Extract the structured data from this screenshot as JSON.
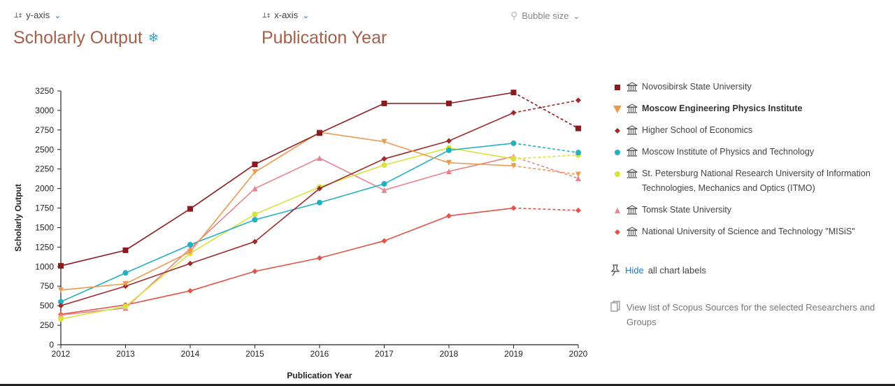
{
  "controls": {
    "y_axis_label": "y-axis",
    "x_axis_label": "x-axis",
    "bubble_label": "Bubble size",
    "y_metric": "Scholarly Output",
    "x_metric": "Publication Year"
  },
  "chart_data": {
    "type": "line",
    "xlabel": "Publication Year",
    "ylabel": "Scholarly Output",
    "x": [
      2012,
      2013,
      2014,
      2015,
      2016,
      2017,
      2018,
      2019,
      2020
    ],
    "ylim": [
      0,
      3250
    ],
    "yticks": [
      0,
      250,
      500,
      750,
      1000,
      1250,
      1500,
      1750,
      2000,
      2250,
      2500,
      2750,
      3000,
      3250
    ],
    "legend_position": "right",
    "grid": false,
    "dashed_last_segment": true,
    "series": [
      {
        "name": "Novosibirsk State University",
        "color": "#8b1a1f",
        "marker": "square",
        "values": [
          1010,
          1210,
          1740,
          2310,
          2710,
          3090,
          3090,
          3230,
          2770
        ]
      },
      {
        "name": "Moscow Engineering Physics Institute",
        "color": "#eb9a4e",
        "marker": "triangle-down",
        "values": [
          700,
          780,
          1190,
          2210,
          2720,
          2600,
          2330,
          2290,
          2180
        ]
      },
      {
        "name": "Higher School of Economics",
        "color": "#9e2a2b",
        "marker": "diamond",
        "values": [
          500,
          750,
          1040,
          1320,
          2000,
          2380,
          2610,
          2970,
          3130
        ]
      },
      {
        "name": "Moscow Institute of Physics and Technology",
        "color": "#22b1c1",
        "marker": "circle",
        "values": [
          550,
          920,
          1280,
          1600,
          1820,
          2060,
          2490,
          2580,
          2460
        ]
      },
      {
        "name": "St. Petersburg National Research University of Information Technologies, Mechanics and Optics (ITMO)",
        "color": "#d8e33b",
        "marker": "circle",
        "values": [
          330,
          490,
          1170,
          1670,
          2020,
          2300,
          2520,
          2380,
          2430
        ]
      },
      {
        "name": "Tomsk State University",
        "color": "#e6858f",
        "marker": "triangle-up",
        "values": [
          380,
          470,
          1230,
          2000,
          2390,
          1980,
          2220,
          2410,
          2130
        ]
      },
      {
        "name": "National University of Science and Technology \"MISiS\"",
        "color": "#e05545",
        "marker": "diamond",
        "values": [
          390,
          510,
          690,
          940,
          1110,
          1330,
          1650,
          1750,
          1720
        ]
      }
    ]
  },
  "legend": {
    "selected_index": 1,
    "hide_link": "Hide",
    "hide_suffix": "all chart labels",
    "view_list": "View list of Scopus Sources for the selected Researchers and Groups"
  },
  "colors": {
    "title": "#a4604a",
    "link": "#1f7ec0",
    "gear": "#3aa0c8"
  },
  "icons": {
    "institution": "institution-icon",
    "pin": "pin-icon",
    "document": "document-icon",
    "gear": "gear-icon",
    "search": "search-icon"
  }
}
